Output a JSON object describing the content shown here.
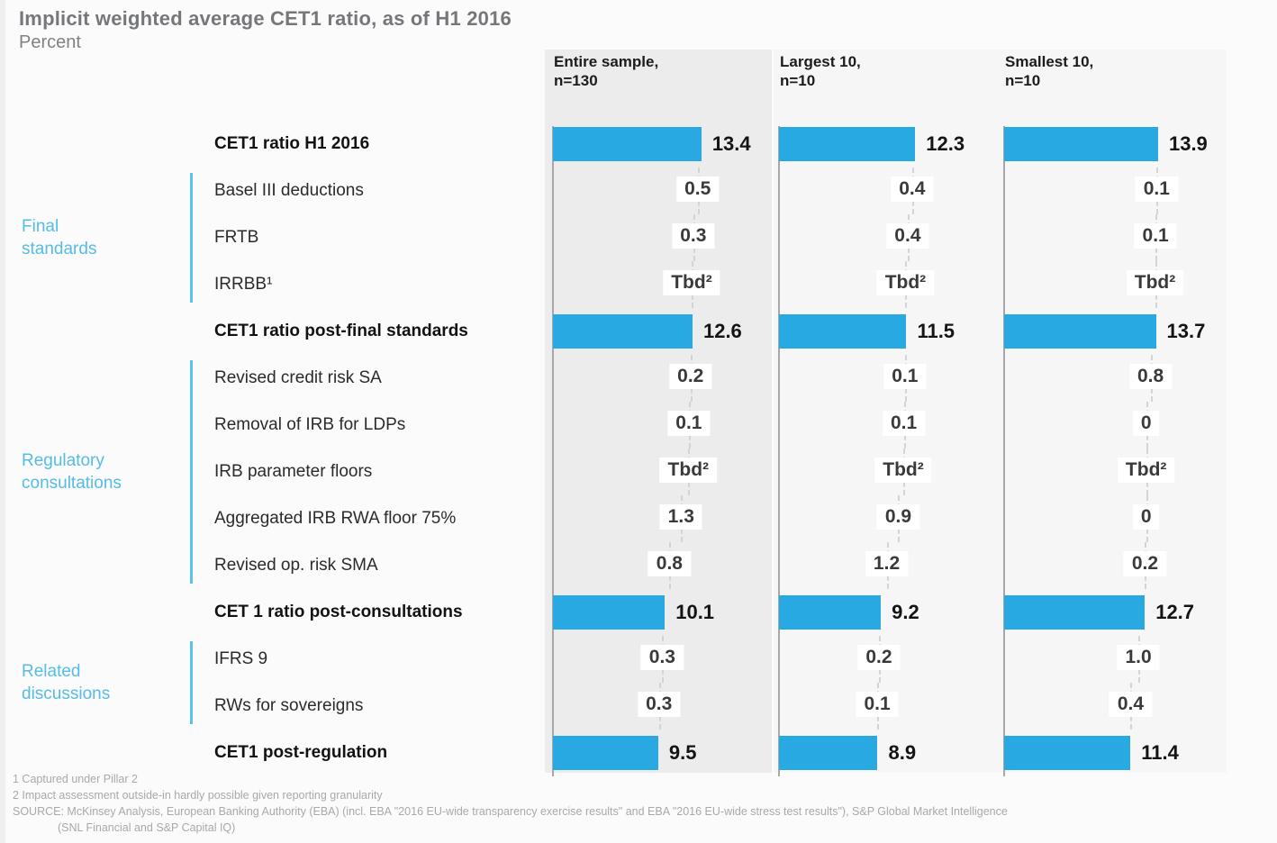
{
  "page": {
    "title": "Implicit weighted average CET1 ratio, as of H1 2016",
    "subtitle": "Percent"
  },
  "groups": [
    {
      "line1": "Final",
      "line2": "standards",
      "start_row": 1,
      "end_row": 3
    },
    {
      "line1": "Regulatory",
      "line2": "consultations",
      "start_row": 5,
      "end_row": 9
    },
    {
      "line1": "Related",
      "line2": "discussions",
      "start_row": 11,
      "end_row": 12
    }
  ],
  "footnotes": {
    "note1": "1 Captured under Pillar 2",
    "note2": "2 Impact assessment outside-in hardly possible given reporting granularity",
    "source_line1": "SOURCE: McKinsey Analysis, European Banking Authority (EBA) (incl. EBA \"2016 EU-wide transparency exercise results\" and EBA \"2016 EU-wide stress test results\"), S&P Global Market Intelligence",
    "source_line2": "(SNL Financial and S&P Capital IQ)"
  },
  "chart_data": {
    "type": "bar",
    "subtype": "waterfall",
    "orientation": "horizontal",
    "title": "Implicit weighted average CET1 ratio, as of H1 2016",
    "unit": "Percent",
    "xlim": [
      0,
      14.5
    ],
    "rows": [
      {
        "label": "CET1 ratio H1 2016",
        "kind": "total"
      },
      {
        "label": "Basel III deductions",
        "kind": "delta"
      },
      {
        "label": "FRTB",
        "kind": "delta"
      },
      {
        "label": "IRRBB¹",
        "kind": "delta"
      },
      {
        "label": "CET1 ratio post-final standards",
        "kind": "total"
      },
      {
        "label": "Revised credit risk SA",
        "kind": "delta"
      },
      {
        "label": "Removal of IRB for LDPs",
        "kind": "delta"
      },
      {
        "label": "IRB parameter floors",
        "kind": "delta"
      },
      {
        "label": "Aggregated IRB RWA floor 75%",
        "kind": "delta"
      },
      {
        "label": "Revised op. risk SMA",
        "kind": "delta"
      },
      {
        "label": "CET 1 ratio post-consultations",
        "kind": "total"
      },
      {
        "label": "IFRS 9",
        "kind": "delta"
      },
      {
        "label": "RWs for sovereigns",
        "kind": "delta"
      },
      {
        "label": "CET1 post-regulation",
        "kind": "total"
      }
    ],
    "series": [
      {
        "name": "Entire sample, n=130",
        "header_line1": "Entire sample,",
        "header_line2": "n=130",
        "highlighted": true,
        "values": [
          "13.4",
          "0.5",
          "0.3",
          "Tbd²",
          "12.6",
          "0.2",
          "0.1",
          "Tbd²",
          "1.3",
          "0.8",
          "10.1",
          "0.3",
          "0.3",
          "9.5"
        ]
      },
      {
        "name": "Largest 10, n=10",
        "header_line1": "Largest 10,",
        "header_line2": "n=10",
        "highlighted": false,
        "values": [
          "12.3",
          "0.4",
          "0.4",
          "Tbd²",
          "11.5",
          "0.1",
          "0.1",
          "Tbd²",
          "0.9",
          "1.2",
          "9.2",
          "0.2",
          "0.1",
          "8.9"
        ]
      },
      {
        "name": "Smallest 10, n=10",
        "header_line1": "Smallest 10,",
        "header_line2": "n=10",
        "highlighted": false,
        "values": [
          "13.9",
          "0.1",
          "0.1",
          "Tbd²",
          "13.7",
          "0.8",
          "0",
          "Tbd²",
          "0",
          "0.2",
          "12.7",
          "1.0",
          "0.4",
          "11.4"
        ]
      }
    ],
    "colors": {
      "bar": "#29a9e1",
      "group_label": "#55bce5",
      "bracket": "#5fc0e8",
      "highlight_band": "#ececec",
      "band": "#f6f6f6",
      "dash": "#d4d4d4",
      "axis": "#a8a8a8"
    }
  }
}
